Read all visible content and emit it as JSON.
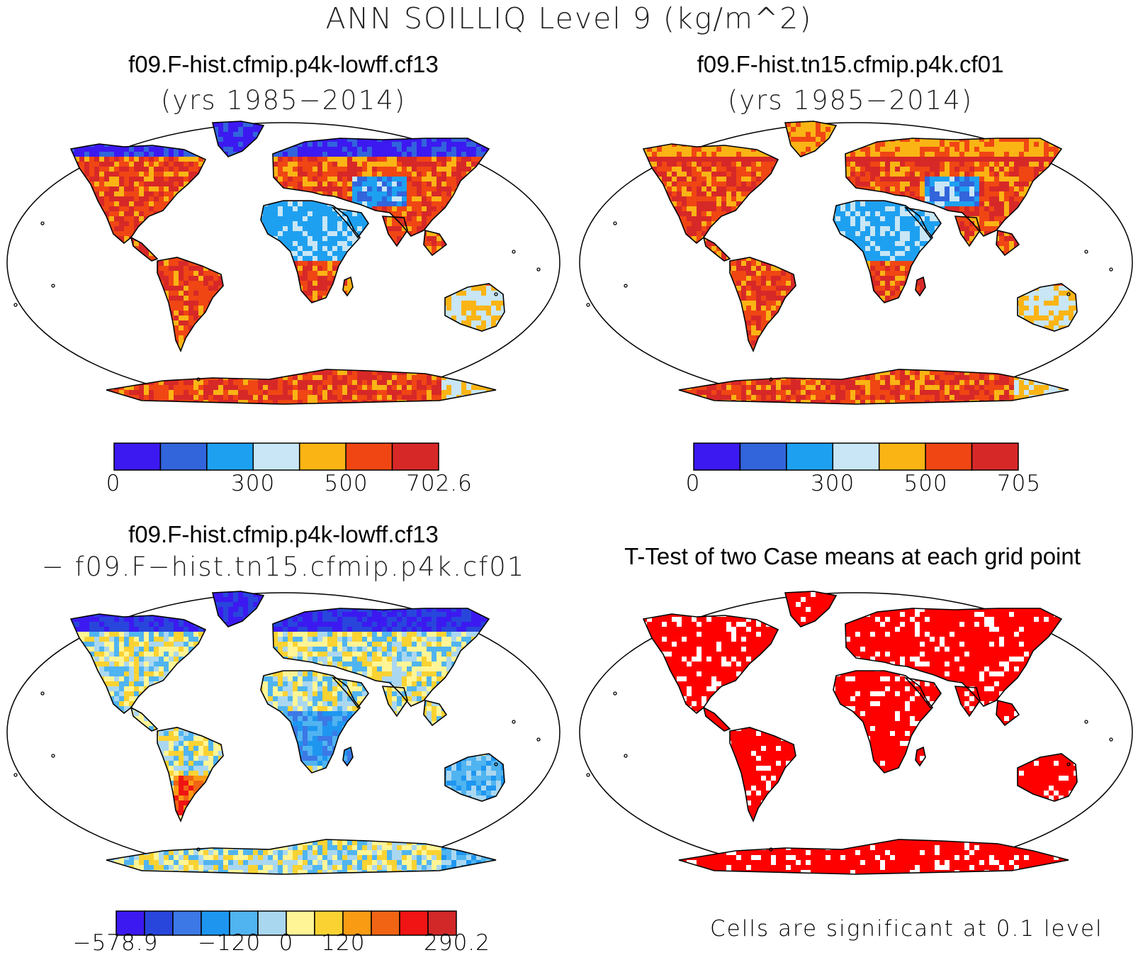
{
  "title": "ANN SOILLIQ Level 9 (kg/m^2)",
  "panels": [
    {
      "id": "case1",
      "title": "f09.F-hist.cfmip.p4k-lowff.cf13",
      "subtitle": "(yrs 1985−2014)",
      "colorbar": {
        "colors": [
          "#3c19f0",
          "#3264dc",
          "#1ea0f0",
          "#c8e6f5",
          "#fab414",
          "#f04614",
          "#d72828"
        ],
        "labels": [
          "0",
          "300",
          "500",
          "702.6"
        ],
        "label_positions": [
          0,
          3,
          5,
          7
        ]
      }
    },
    {
      "id": "case2",
      "title": "f09.F-hist.tn15.cfmip.p4k.cf01",
      "subtitle": "(yrs 1985−2014)",
      "colorbar": {
        "colors": [
          "#3c19f0",
          "#3264dc",
          "#1ea0f0",
          "#c8e6f5",
          "#fab414",
          "#f04614",
          "#d72828"
        ],
        "labels": [
          "0",
          "300",
          "500",
          "705"
        ],
        "label_positions": [
          0,
          3,
          5,
          7
        ]
      }
    },
    {
      "id": "difference",
      "title": "f09.F-hist.cfmip.p4k-lowff.cf13",
      "subtitle": "− f09.F−hist.tn15.cfmip.p4k.cf01",
      "colorbar": {
        "colors": [
          "#3c19f0",
          "#2846dc",
          "#3c78e6",
          "#1e96f0",
          "#50b4f0",
          "#aad7f0",
          "#fff596",
          "#fad232",
          "#fa9b14",
          "#f06414",
          "#f01414",
          "#d22828"
        ],
        "labels": [
          "−578.9",
          "−120",
          "0",
          "120",
          "290.2"
        ],
        "label_positions": [
          0,
          4,
          6,
          8,
          12
        ]
      }
    },
    {
      "id": "ttest",
      "title": "T-Test of two Case means at each grid point",
      "note": "Cells are significant at 0.1 level"
    }
  ],
  "colors": {
    "significant": "#ff0000",
    "land_outline": "#000000"
  }
}
